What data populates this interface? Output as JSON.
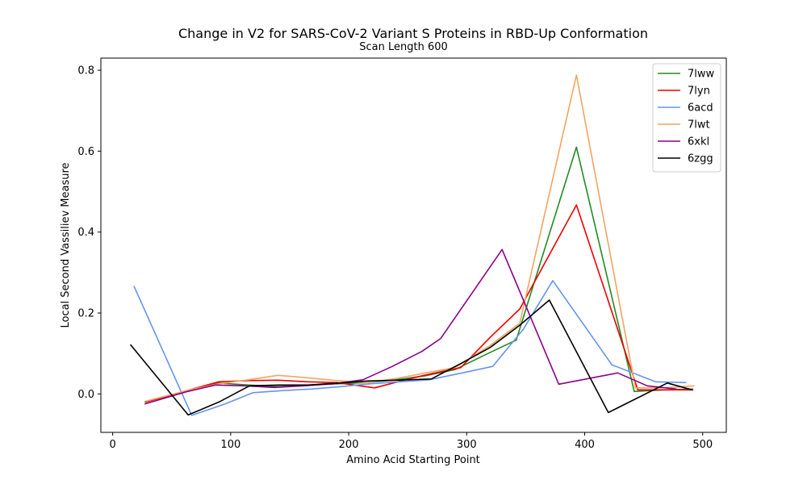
{
  "chart_data": {
    "type": "line",
    "title": "Change in V2 for SARS-CoV-2 Variant S Proteins in RBD-Up Conformation",
    "subtitle": "Scan Length 600",
    "xlabel": "Amino Acid Starting Point",
    "ylabel": "Local Second Vassiliev Measure",
    "xlim": [
      -10,
      520
    ],
    "ylim": [
      -0.095,
      0.83
    ],
    "xticks": [
      0,
      100,
      200,
      300,
      400,
      500
    ],
    "yticks": [
      0.0,
      0.2,
      0.4,
      0.6,
      0.8
    ],
    "xtick_labels": [
      "0",
      "100",
      "200",
      "300",
      "400",
      "500"
    ],
    "ytick_labels": [
      "0.0",
      "0.2",
      "0.4",
      "0.6",
      "0.8"
    ],
    "grid": false,
    "legend_position": "top-right",
    "series": [
      {
        "name": "7lww",
        "color": "#228b22",
        "x": [
          27,
          65,
          90,
          115,
          140,
          165,
          190,
          215,
          240,
          265,
          290,
          318,
          342,
          393,
          442,
          467,
          492
        ],
        "y": [
          -0.02,
          0.008,
          0.027,
          0.022,
          0.018,
          0.022,
          0.025,
          0.028,
          0.035,
          0.045,
          0.06,
          0.1,
          0.133,
          0.61,
          0.006,
          0.01,
          0.012
        ]
      },
      {
        "name": "7lyn",
        "color": "#ee0000",
        "x": [
          28,
          65,
          90,
          115,
          140,
          165,
          190,
          222,
          255,
          270,
          295,
          320,
          345,
          393,
          445,
          470,
          492
        ],
        "y": [
          -0.02,
          0.01,
          0.03,
          0.033,
          0.034,
          0.03,
          0.028,
          0.015,
          0.04,
          0.05,
          0.065,
          0.14,
          0.21,
          0.467,
          0.01,
          0.01,
          0.01
        ]
      },
      {
        "name": "6acd",
        "color": "#6495ed",
        "x": [
          18,
          67,
          95,
          119,
          143,
          168,
          193,
          218,
          243,
          268,
          293,
          322,
          348,
          373,
          423,
          460,
          486
        ],
        "y": [
          0.267,
          -0.053,
          -0.025,
          0.003,
          0.008,
          0.012,
          0.018,
          0.025,
          0.03,
          0.035,
          0.05,
          0.068,
          0.16,
          0.28,
          0.072,
          0.03,
          0.028
        ]
      },
      {
        "name": "7lwt",
        "color": "#f4a460",
        "x": [
          28,
          65,
          90,
          115,
          140,
          165,
          190,
          215,
          240,
          265,
          290,
          320,
          345,
          393,
          443,
          468,
          493
        ],
        "y": [
          -0.018,
          0.01,
          0.025,
          0.035,
          0.046,
          0.04,
          0.033,
          0.028,
          0.038,
          0.052,
          0.065,
          0.12,
          0.175,
          0.788,
          0.015,
          0.015,
          0.02
        ]
      },
      {
        "name": "6xkl",
        "color": "#8b008b",
        "x": [
          27,
          62,
          87,
          112,
          137,
          162,
          187,
          212,
          237,
          262,
          278,
          330,
          378,
          428,
          453,
          478
        ],
        "y": [
          -0.025,
          0.005,
          0.022,
          0.02,
          0.016,
          0.02,
          0.025,
          0.035,
          0.068,
          0.105,
          0.137,
          0.357,
          0.024,
          0.052,
          0.02,
          0.012
        ]
      },
      {
        "name": "6zgg",
        "color": "#000000",
        "x": [
          15,
          64,
          90,
          116,
          141,
          166,
          191,
          216,
          241,
          270,
          295,
          320,
          345,
          370,
          420,
          470,
          491
        ],
        "y": [
          0.122,
          -0.052,
          -0.02,
          0.02,
          0.022,
          0.022,
          0.027,
          0.032,
          0.034,
          0.037,
          0.075,
          0.115,
          0.17,
          0.232,
          -0.046,
          0.027,
          0.01
        ]
      }
    ]
  }
}
